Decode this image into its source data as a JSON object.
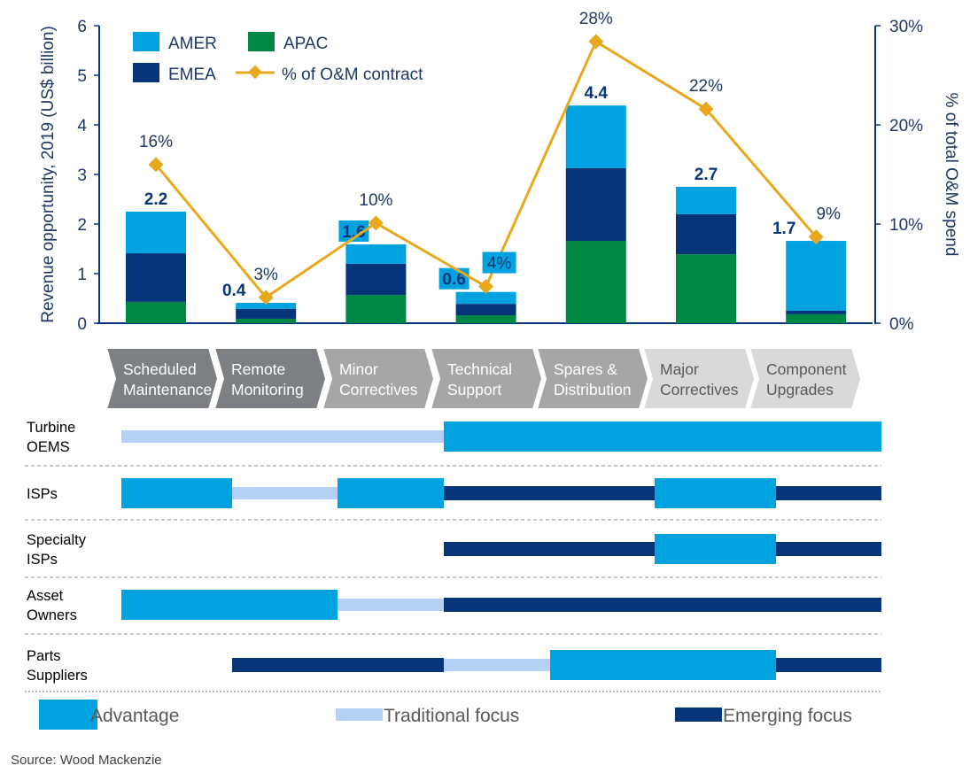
{
  "chart_data": {
    "type": "bar",
    "stacked": true,
    "categories": [
      "Scheduled Maintenance",
      "Remote Monitoring",
      "Minor Correctives",
      "Technical Support",
      "Spares & Distribution",
      "Major Correctives",
      "Component Upgrades"
    ],
    "series": [
      {
        "name": "APAC",
        "color": "#008744",
        "values": [
          0.43,
          0.09,
          0.57,
          0.16,
          1.66,
          1.39,
          0.18
        ]
      },
      {
        "name": "EMEA",
        "color": "#06357a",
        "values": [
          0.98,
          0.2,
          0.63,
          0.23,
          1.47,
          0.81,
          0.07
        ]
      },
      {
        "name": "AMER",
        "color": "#00a3e0",
        "values": [
          0.84,
          0.12,
          0.39,
          0.24,
          1.26,
          0.55,
          1.41
        ]
      }
    ],
    "totals_labels": [
      "2.2",
      "0.4",
      "1.6",
      "0.6",
      "4.4",
      "2.7",
      "1.7"
    ],
    "line": {
      "name": "%  of O&M contract",
      "color": "#e8a81e",
      "values": [
        16,
        2.6,
        10.1,
        3.7,
        28.4,
        21.6,
        8.7
      ],
      "labels": [
        "16%",
        "3%",
        "10%",
        "4%",
        "28%",
        "22%",
        "9%"
      ]
    },
    "ylabel": "Revenue opportunity, 2019 (US$ billion)",
    "ylim": [
      0,
      6
    ],
    "yticks": [
      "0",
      "1",
      "2",
      "3",
      "4",
      "5",
      "6"
    ],
    "y2label": "% of total O&M spend",
    "y2lim": [
      0,
      30
    ],
    "y2ticks": [
      "0%",
      "10%",
      "20%",
      "30%"
    ],
    "legend": {
      "placement": "top-left",
      "entries": [
        "AMER",
        "APAC",
        "EMEA",
        "%  of O&M contract"
      ]
    },
    "grid": false
  },
  "stages": [
    {
      "label": [
        "Scheduled",
        "Maintenance"
      ],
      "fill": "#7c7f84",
      "text": "#ffffff"
    },
    {
      "label": [
        "Remote",
        "Monitoring"
      ],
      "fill": "#7c7f84",
      "text": "#ffffff"
    },
    {
      "label": [
        "Minor",
        "Correctives"
      ],
      "fill": "#a6a6a6",
      "text": "#ffffff"
    },
    {
      "label": [
        "Technical",
        "Support"
      ],
      "fill": "#a6a6a6",
      "text": "#ffffff"
    },
    {
      "label": [
        "Spares &",
        "Distribution"
      ],
      "fill": "#a6a6a6",
      "text": "#ffffff"
    },
    {
      "label": [
        "Major",
        "Correctives"
      ],
      "fill": "#d9d9d9",
      "text": "#595959"
    },
    {
      "label": [
        "Component",
        "Upgrades"
      ],
      "fill": "#d9d9d9",
      "text": "#595959"
    }
  ],
  "matrix": {
    "colors": {
      "advantage": "#00a3e0",
      "traditional": "#b4d0f5",
      "emerging": "#06357a"
    },
    "rows": [
      {
        "label": [
          "Turbine",
          "OEMS"
        ],
        "segments": [
          {
            "from": 0,
            "to": 3,
            "type": "traditional"
          },
          {
            "from": 3,
            "to": 7,
            "type": "advantage"
          }
        ]
      },
      {
        "label": [
          "ISPs"
        ],
        "segments": [
          {
            "from": 0,
            "to": 1,
            "type": "advantage"
          },
          {
            "from": 1,
            "to": 2,
            "type": "traditional"
          },
          {
            "from": 2,
            "to": 3,
            "type": "advantage"
          },
          {
            "from": 3,
            "to": 5,
            "type": "emerging"
          },
          {
            "from": 5,
            "to": 6,
            "type": "advantage"
          },
          {
            "from": 6,
            "to": 7,
            "type": "emerging"
          }
        ]
      },
      {
        "label": [
          "Specialty",
          "ISPs"
        ],
        "segments": [
          {
            "from": 3,
            "to": 5,
            "type": "emerging"
          },
          {
            "from": 5,
            "to": 6,
            "type": "advantage"
          },
          {
            "from": 6,
            "to": 7,
            "type": "emerging"
          }
        ]
      },
      {
        "label": [
          "Asset",
          "Owners"
        ],
        "segments": [
          {
            "from": 0,
            "to": 2,
            "type": "advantage"
          },
          {
            "from": 2,
            "to": 3,
            "type": "traditional"
          },
          {
            "from": 3,
            "to": 7,
            "type": "emerging"
          }
        ]
      },
      {
        "label": [
          "Parts",
          "Suppliers"
        ],
        "segments": [
          {
            "from": 1,
            "to": 3,
            "type": "emerging"
          },
          {
            "from": 3,
            "to": 4,
            "type": "traditional"
          },
          {
            "from": 4,
            "to": 6,
            "type": "advantage"
          },
          {
            "from": 6,
            "to": 7,
            "type": "emerging"
          }
        ]
      }
    ],
    "legend": {
      "advantage": "Advantage",
      "traditional": "Traditional focus",
      "emerging": "Emerging focus"
    }
  },
  "source": "Source: Wood Mackenzie"
}
